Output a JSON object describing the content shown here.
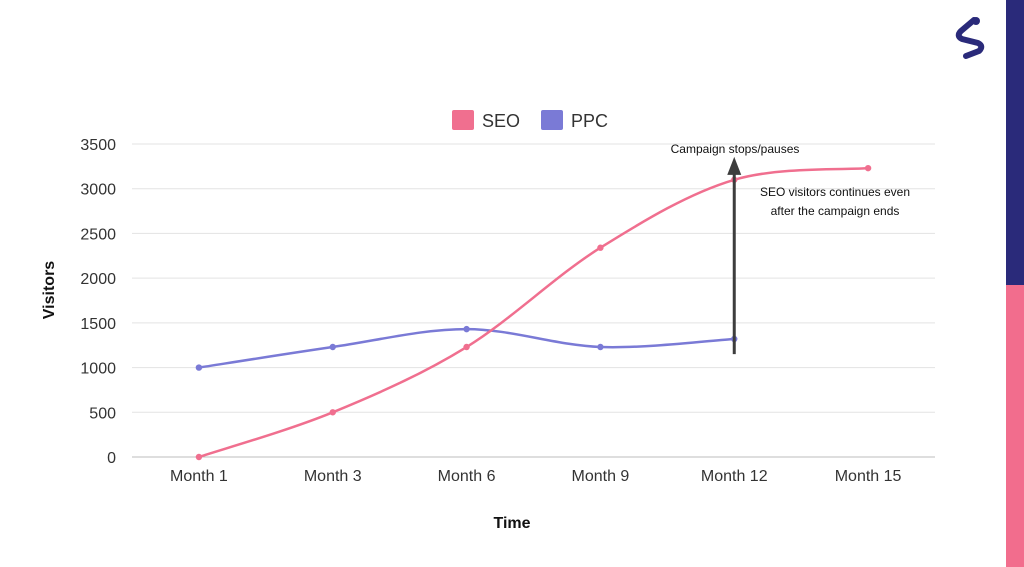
{
  "brand": {
    "logo_icon": "brand-s-logo-icon",
    "navy": "#2a2a7a",
    "pink": "#f26d8d"
  },
  "chart_data": {
    "type": "line",
    "categories": [
      "Month 1",
      "Month 3",
      "Month 6",
      "Month 9",
      "Month 12",
      "Month 15"
    ],
    "series": [
      {
        "name": "SEO",
        "color": "#f06f8f",
        "values": [
          0,
          500,
          1230,
          2340,
          3100,
          3230
        ]
      },
      {
        "name": "PPC",
        "color": "#7a7ad6",
        "values": [
          1000,
          1230,
          1430,
          1230,
          1320,
          null
        ]
      }
    ],
    "xlabel": "Time",
    "ylabel": "Visitors",
    "ylim": [
      0,
      3500
    ],
    "yticks": [
      "0",
      "500",
      "1000",
      "1500",
      "2000",
      "2500",
      "3000",
      "3500"
    ],
    "grid": true,
    "legend_position": "top",
    "annotations": {
      "arrow_label": "Campaign stops/pauses",
      "arrow_category": "Month 12",
      "arrow_from": 1150,
      "arrow_to": 3200,
      "note_lines": [
        "SEO visitors continues even",
        "after the campaign ends"
      ]
    }
  }
}
